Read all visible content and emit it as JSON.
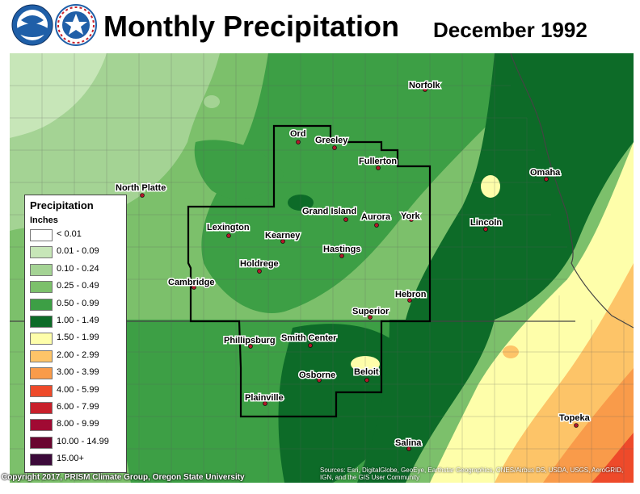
{
  "header": {
    "title": "Monthly Precipitation",
    "date": "December 1992",
    "logos": [
      "noaa-logo",
      "nws-logo"
    ]
  },
  "legend": {
    "title": "Precipitation",
    "units": "Inches",
    "items": [
      {
        "label": "< 0.01",
        "color": "#ffffff"
      },
      {
        "label": "0.01 - 0.09",
        "color": "#c7e6b8"
      },
      {
        "label": "0.10 - 0.24",
        "color": "#a4d394"
      },
      {
        "label": "0.25 - 0.49",
        "color": "#7cc06b"
      },
      {
        "label": "0.50 - 0.99",
        "color": "#3d9f45"
      },
      {
        "label": "1.00 - 1.49",
        "color": "#0d6b28"
      },
      {
        "label": "1.50 - 1.99",
        "color": "#fefeaa"
      },
      {
        "label": "2.00 - 2.99",
        "color": "#fdc468"
      },
      {
        "label": "3.00 - 3.99",
        "color": "#f99b4a"
      },
      {
        "label": "4.00 - 5.99",
        "color": "#ee4a2a"
      },
      {
        "label": "6.00 - 7.99",
        "color": "#c8202b"
      },
      {
        "label": "8.00 - 9.99",
        "color": "#a00a33"
      },
      {
        "label": "10.00 - 14.99",
        "color": "#6a0630"
      },
      {
        "label": "15.00+",
        "color": "#3c0a3a"
      }
    ]
  },
  "cities": [
    {
      "name": "Norfolk"
    },
    {
      "name": "Ord"
    },
    {
      "name": "Greeley"
    },
    {
      "name": "Fullerton"
    },
    {
      "name": "North Platte"
    },
    {
      "name": "Omaha"
    },
    {
      "name": "Grand Island"
    },
    {
      "name": "Aurora"
    },
    {
      "name": "York"
    },
    {
      "name": "Lincoln"
    },
    {
      "name": "Lexington"
    },
    {
      "name": "Kearney"
    },
    {
      "name": "Hastings"
    },
    {
      "name": "Holdrege"
    },
    {
      "name": "Cambridge"
    },
    {
      "name": "Hebron"
    },
    {
      "name": "Superior"
    },
    {
      "name": "Phillipsburg"
    },
    {
      "name": "Smith Center"
    },
    {
      "name": "Osborne"
    },
    {
      "name": "Beloit"
    },
    {
      "name": "Plainville"
    },
    {
      "name": "Topeka"
    },
    {
      "name": "Salina"
    }
  ],
  "footer": {
    "copyright": "Copyright 2017, PRISM Climate Group, Oregon State University",
    "sources": "Sources: Esri, DigitalGlobe, GeoEye, Earthstar Geographics, CNES/Airbus DS, USDA, USGS, AeroGRID, IGN, and the GIS User Community"
  }
}
